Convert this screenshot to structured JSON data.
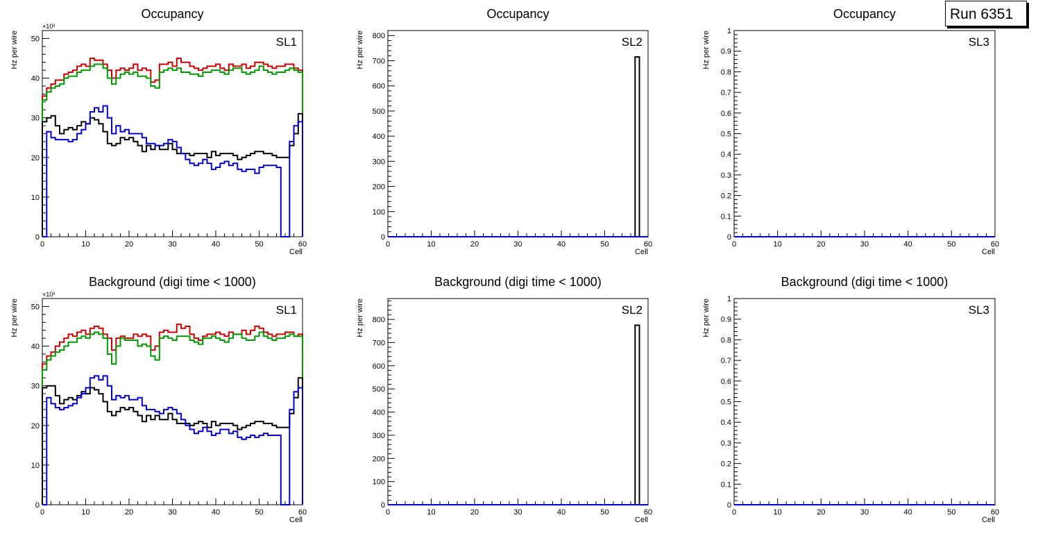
{
  "run_label": "Run 6351",
  "chart_data": [
    {
      "type": "step-histogram",
      "title": "Occupancy",
      "xlabel": "Cell",
      "ylabel": "Hz per wire",
      "xlim": [
        0,
        60
      ],
      "ylim": [
        0,
        52
      ],
      "multiplier": "×10³",
      "xticks": [
        0,
        10,
        20,
        30,
        40,
        50,
        60
      ],
      "yticks": [
        0,
        10,
        20,
        30,
        40,
        50
      ],
      "label": "SL1",
      "series": [
        {
          "name": "layer1",
          "color": "#cc0000",
          "values": [
            35.5,
            37.5,
            38.5,
            39.5,
            39.5,
            41,
            41.5,
            42,
            43,
            43.5,
            43,
            45,
            44.5,
            44.5,
            43.5,
            42,
            40,
            42,
            42.5,
            42,
            42.5,
            43.5,
            42,
            42.5,
            42,
            39,
            39.5,
            43.5,
            43.5,
            44,
            43,
            45,
            44,
            44,
            43,
            42.5,
            42,
            42.5,
            43,
            43,
            43.5,
            42.5,
            42,
            43.5,
            43,
            43,
            43.5,
            42.5,
            43,
            44,
            44,
            43.5,
            43,
            42.5,
            43,
            43,
            43.5,
            43.5,
            42.5,
            42
          ]
        },
        {
          "name": "layer2",
          "color": "#009900",
          "values": [
            34.5,
            36.5,
            37.5,
            38,
            38.5,
            40,
            40.5,
            40.5,
            41.5,
            42,
            42,
            43,
            43.5,
            43.5,
            42.5,
            40,
            38.5,
            40,
            41,
            41.5,
            41,
            41.5,
            40.5,
            40.5,
            40,
            38,
            37.5,
            41.5,
            42,
            42.5,
            42,
            42.5,
            41.5,
            41.5,
            41,
            41,
            40.5,
            41.5,
            41.5,
            42,
            42,
            41.5,
            41,
            42,
            42.5,
            42.5,
            41.5,
            41,
            41.5,
            42,
            43,
            42,
            41.5,
            41,
            41.5,
            41.5,
            42,
            42.5,
            42,
            41.5
          ]
        },
        {
          "name": "layer3",
          "color": "#000000",
          "values": [
            29,
            30,
            30.5,
            28,
            26,
            27,
            27.5,
            27,
            28,
            29,
            28.5,
            30,
            29.5,
            28.5,
            26.5,
            23.5,
            23,
            23.5,
            25,
            24.5,
            25,
            24,
            23,
            21.5,
            23,
            22,
            23,
            22,
            22,
            23.5,
            22,
            21,
            21,
            21,
            20.5,
            21,
            21,
            21,
            20,
            21.5,
            20.5,
            21,
            21,
            21,
            20.5,
            19.5,
            20,
            20.5,
            21,
            21.5,
            21.5,
            21,
            21,
            20.5,
            20,
            20,
            20,
            23,
            26,
            31
          ]
        },
        {
          "name": "layer4",
          "color": "#0000cc",
          "values": [
            0,
            26.5,
            25,
            24.5,
            24.5,
            24.5,
            24,
            24.5,
            26,
            27,
            28.5,
            31.5,
            32.5,
            31.5,
            33,
            30,
            26,
            28,
            26.5,
            27,
            26,
            26,
            26,
            25,
            23.5,
            23.5,
            23,
            23,
            23.5,
            24.5,
            24,
            22.5,
            21,
            19.5,
            18.5,
            18,
            18.5,
            19.5,
            18.5,
            17,
            17.5,
            18.5,
            19,
            18,
            18.5,
            17,
            16.5,
            17,
            17,
            16,
            17.5,
            18,
            18,
            18,
            17.5,
            0,
            0,
            24,
            28,
            29
          ]
        }
      ]
    },
    {
      "type": "step-histogram",
      "title": "Occupancy",
      "xlabel": "Cell",
      "ylabel": "Hz per wire",
      "xlim": [
        0,
        60
      ],
      "ylim": [
        0,
        820
      ],
      "xticks": [
        0,
        10,
        20,
        30,
        40,
        50,
        60
      ],
      "yticks": [
        0,
        100,
        200,
        300,
        400,
        500,
        600,
        700,
        800
      ],
      "label": "SL2",
      "series": [
        {
          "name": "layer3",
          "color": "#000000",
          "values": [
            0,
            0,
            0,
            0,
            0,
            0,
            0,
            0,
            0,
            0,
            0,
            0,
            0,
            0,
            0,
            0,
            0,
            0,
            0,
            0,
            0,
            0,
            0,
            0,
            0,
            0,
            0,
            0,
            0,
            0,
            0,
            0,
            0,
            0,
            0,
            0,
            0,
            0,
            0,
            0,
            0,
            0,
            0,
            0,
            0,
            0,
            0,
            0,
            0,
            0,
            0,
            0,
            0,
            0,
            0,
            0,
            0,
            715,
            0,
            0
          ]
        },
        {
          "name": "layer4",
          "color": "#0000cc",
          "values": [
            0,
            0,
            0,
            0,
            0,
            0,
            0,
            0,
            0,
            0,
            0,
            0,
            0,
            0,
            0,
            0,
            0,
            0,
            0,
            0,
            0,
            0,
            0,
            0,
            0,
            0,
            0,
            0,
            0,
            0,
            0,
            0,
            0,
            0,
            0,
            0,
            0,
            0,
            0,
            0,
            0,
            0,
            0,
            0,
            0,
            0,
            0,
            0,
            0,
            0,
            0,
            0,
            0,
            0,
            0,
            0,
            0,
            0,
            0,
            0
          ]
        }
      ]
    },
    {
      "type": "step-histogram",
      "title": "Occupancy",
      "xlabel": "Cell",
      "ylabel": "Hz per wire",
      "xlim": [
        0,
        60
      ],
      "ylim": [
        0,
        1
      ],
      "xticks": [
        0,
        10,
        20,
        30,
        40,
        50,
        60
      ],
      "yticks": [
        0,
        0.1,
        0.2,
        0.3,
        0.4,
        0.5,
        0.6,
        0.7,
        0.8,
        0.9,
        1
      ],
      "label": "SL3",
      "series": [
        {
          "name": "layer4",
          "color": "#0000cc",
          "values": [
            0,
            0,
            0,
            0,
            0,
            0,
            0,
            0,
            0,
            0,
            0,
            0,
            0,
            0,
            0,
            0,
            0,
            0,
            0,
            0,
            0,
            0,
            0,
            0,
            0,
            0,
            0,
            0,
            0,
            0,
            0,
            0,
            0,
            0,
            0,
            0,
            0,
            0,
            0,
            0,
            0,
            0,
            0,
            0,
            0,
            0,
            0,
            0,
            0,
            0,
            0,
            0,
            0,
            0,
            0,
            0,
            0,
            0,
            0,
            0
          ]
        }
      ]
    },
    {
      "type": "step-histogram",
      "title": "Background (digi time < 1000)",
      "xlabel": "Cell",
      "ylabel": "Hz per wire",
      "xlim": [
        0,
        60
      ],
      "ylim": [
        0,
        52
      ],
      "multiplier": "×10³",
      "xticks": [
        0,
        10,
        20,
        30,
        40,
        50,
        60
      ],
      "yticks": [
        0,
        10,
        20,
        30,
        40,
        50
      ],
      "label": "SL1",
      "series": [
        {
          "name": "layer1",
          "color": "#cc0000",
          "values": [
            35.5,
            37.5,
            38.5,
            40,
            41,
            42,
            43,
            42.5,
            43.5,
            44,
            43,
            44.5,
            45,
            44.5,
            43,
            42,
            39,
            42,
            42.5,
            42,
            42,
            43,
            42.5,
            43,
            42.5,
            39,
            40,
            43.5,
            44,
            43.5,
            43.5,
            45.5,
            44.5,
            45,
            43,
            42,
            41.5,
            42.5,
            43,
            43,
            43.5,
            43,
            42.5,
            43.5,
            43,
            43,
            44,
            43,
            44,
            45,
            44.5,
            43.5,
            43,
            42.5,
            43,
            43,
            43.5,
            43.5,
            42.5,
            43
          ]
        },
        {
          "name": "layer2",
          "color": "#009900",
          "values": [
            34,
            36.5,
            37.5,
            38.5,
            39,
            40,
            41,
            41,
            42,
            42.5,
            42,
            43,
            43.5,
            43,
            42,
            38,
            35.5,
            40,
            42,
            41.5,
            41.5,
            41.5,
            40,
            40.5,
            40,
            37.5,
            36.5,
            42,
            42.5,
            42,
            41.5,
            42.5,
            42.5,
            42.5,
            41.5,
            41,
            40.5,
            42,
            42,
            42.5,
            42,
            41.5,
            41,
            42,
            43,
            43,
            42,
            41.5,
            41.5,
            42.5,
            43.5,
            42.5,
            42,
            41.5,
            42,
            42,
            42.5,
            43,
            42.5,
            42.5
          ]
        },
        {
          "name": "layer3",
          "color": "#000000",
          "values": [
            29.5,
            30,
            30,
            27.5,
            25.5,
            26.5,
            27,
            26.5,
            27.5,
            28.5,
            28,
            29.5,
            29,
            28,
            26,
            23.5,
            22.5,
            23.5,
            24.5,
            24,
            24.5,
            23.5,
            22.5,
            21,
            22.5,
            21.5,
            22.5,
            21.5,
            21.5,
            23,
            21.5,
            20.5,
            20.5,
            20.5,
            20,
            20.5,
            21,
            20.5,
            19.5,
            21,
            20,
            20.5,
            20.5,
            20.5,
            20,
            19,
            19.5,
            20,
            20.5,
            21,
            21,
            20.5,
            20.5,
            20,
            19.5,
            19.5,
            19.5,
            23,
            27,
            32
          ]
        },
        {
          "name": "layer4",
          "color": "#0000cc",
          "values": [
            0,
            27,
            25.5,
            24.5,
            24,
            24.5,
            25,
            25.5,
            27,
            28,
            29.5,
            32,
            32.5,
            31.5,
            32.5,
            30,
            26.5,
            27.5,
            27,
            27.5,
            26.5,
            26.5,
            27,
            25,
            24,
            24,
            23.5,
            23,
            24,
            24.5,
            24,
            23,
            21.5,
            20,
            19,
            18,
            18.5,
            19.5,
            18.5,
            17.5,
            18,
            19,
            19,
            18,
            18.5,
            17,
            16.5,
            17,
            17.5,
            17,
            17.5,
            18,
            17.5,
            17.5,
            17.5,
            0,
            0,
            24,
            28.5,
            29.5
          ]
        }
      ]
    },
    {
      "type": "step-histogram",
      "title": "Background (digi time < 1000)",
      "xlabel": "Cell",
      "ylabel": "Hz per wire",
      "xlim": [
        0,
        60
      ],
      "ylim": [
        0,
        890
      ],
      "xticks": [
        0,
        10,
        20,
        30,
        40,
        50,
        60
      ],
      "yticks": [
        0,
        100,
        200,
        300,
        400,
        500,
        600,
        700,
        800
      ],
      "label": "SL2",
      "series": [
        {
          "name": "layer3",
          "color": "#000000",
          "values": [
            0,
            0,
            0,
            0,
            0,
            0,
            0,
            0,
            0,
            0,
            0,
            0,
            0,
            0,
            0,
            0,
            0,
            0,
            0,
            0,
            0,
            0,
            0,
            0,
            0,
            0,
            0,
            0,
            0,
            0,
            0,
            0,
            0,
            0,
            0,
            0,
            0,
            0,
            0,
            0,
            0,
            0,
            0,
            0,
            0,
            0,
            0,
            0,
            0,
            0,
            0,
            0,
            0,
            0,
            0,
            0,
            0,
            775,
            0,
            0
          ]
        },
        {
          "name": "layer4",
          "color": "#0000cc",
          "values": [
            0,
            0,
            0,
            0,
            0,
            0,
            0,
            0,
            0,
            0,
            0,
            0,
            0,
            0,
            0,
            0,
            0,
            0,
            0,
            0,
            0,
            0,
            0,
            0,
            0,
            0,
            0,
            0,
            0,
            0,
            0,
            0,
            0,
            0,
            0,
            0,
            0,
            0,
            0,
            0,
            0,
            0,
            0,
            0,
            0,
            0,
            0,
            0,
            0,
            0,
            0,
            0,
            0,
            0,
            0,
            0,
            0,
            0,
            0,
            0
          ]
        }
      ]
    },
    {
      "type": "step-histogram",
      "title": "Background (digi time < 1000)",
      "xlabel": "Cell",
      "ylabel": "Hz per wire",
      "xlim": [
        0,
        60
      ],
      "ylim": [
        0,
        1
      ],
      "xticks": [
        0,
        10,
        20,
        30,
        40,
        50,
        60
      ],
      "yticks": [
        0,
        0.1,
        0.2,
        0.3,
        0.4,
        0.5,
        0.6,
        0.7,
        0.8,
        0.9,
        1
      ],
      "label": "SL3",
      "series": [
        {
          "name": "layer4",
          "color": "#0000cc",
          "values": [
            0,
            0,
            0,
            0,
            0,
            0,
            0,
            0,
            0,
            0,
            0,
            0,
            0,
            0,
            0,
            0,
            0,
            0,
            0,
            0,
            0,
            0,
            0,
            0,
            0,
            0,
            0,
            0,
            0,
            0,
            0,
            0,
            0,
            0,
            0,
            0,
            0,
            0,
            0,
            0,
            0,
            0,
            0,
            0,
            0,
            0,
            0,
            0,
            0,
            0,
            0,
            0,
            0,
            0,
            0,
            0,
            0,
            0,
            0,
            0
          ]
        }
      ]
    }
  ]
}
